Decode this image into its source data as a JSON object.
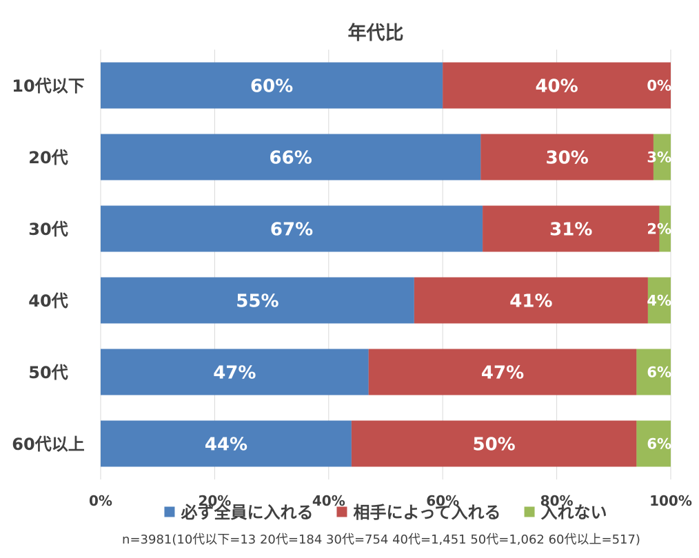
{
  "chart_data": {
    "type": "bar",
    "orientation": "horizontal",
    "stacked": "percent",
    "title": "年代比",
    "categories": [
      "10代以下",
      "20代",
      "30代",
      "40代",
      "50代",
      "60代以上"
    ],
    "series": [
      {
        "name": "必ず全員に入れる",
        "color": "#4F81BD",
        "values": [
          60,
          66,
          67,
          55,
          47,
          44
        ],
        "labels": [
          "60%",
          "66%",
          "67%",
          "55%",
          "47%",
          "44%"
        ]
      },
      {
        "name": "相手によって入れる",
        "color": "#C0504D",
        "values": [
          40,
          30,
          31,
          41,
          47,
          50
        ],
        "labels": [
          "40%",
          "30%",
          "31%",
          "41%",
          "47%",
          "50%"
        ]
      },
      {
        "name": "入れない",
        "color": "#9BBB59",
        "values": [
          0,
          3,
          2,
          4,
          6,
          6
        ],
        "labels": [
          "0%",
          "3%",
          "2%",
          "4%",
          "6%",
          "6%"
        ]
      }
    ],
    "xlim": [
      0,
      100
    ],
    "xticks": [
      "0%",
      "20%",
      "40%",
      "60%",
      "80%",
      "100%"
    ],
    "grid": true,
    "legend": "bottom",
    "note": "n=3981(10代以下=13  20代=184  30代=754  40代=1,451  50代=1,062  60代以上=517)"
  }
}
